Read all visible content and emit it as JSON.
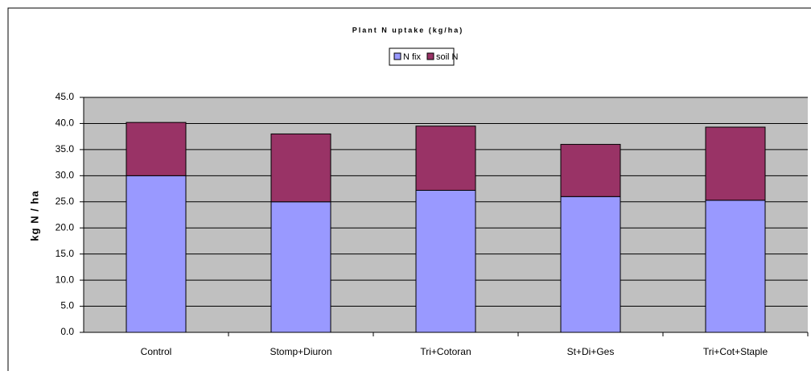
{
  "chart_data": {
    "type": "bar",
    "stacked": true,
    "title": "Plant N uptake (kg/ha)",
    "y_label": "kg N / ha",
    "categories": [
      "Control",
      "Stomp+Diuron",
      "Tri+Cotoran",
      "St+Di+Ges",
      "Tri+Cot+Staple"
    ],
    "series": [
      {
        "name": "N fix",
        "color": "#9999ff",
        "values": [
          30.0,
          25.0,
          27.2,
          26.0,
          25.3
        ]
      },
      {
        "name": "soil N",
        "color": "#993366",
        "values": [
          10.2,
          13.0,
          12.3,
          10.0,
          14.0
        ]
      }
    ],
    "ylim": [
      0,
      45
    ],
    "yticks": [
      {
        "value": 0,
        "label": "0.0"
      },
      {
        "value": 5,
        "label": "5.0"
      },
      {
        "value": 10,
        "label": "10.0"
      },
      {
        "value": 15,
        "label": "15.0"
      },
      {
        "value": 20,
        "label": "20.0"
      },
      {
        "value": 25,
        "label": "25.0"
      },
      {
        "value": 30,
        "label": "30.0"
      },
      {
        "value": 35,
        "label": "35.0"
      },
      {
        "value": 40,
        "label": "40.0"
      },
      {
        "value": 45,
        "label": "45.0"
      }
    ],
    "grid": true,
    "legend": "top"
  }
}
